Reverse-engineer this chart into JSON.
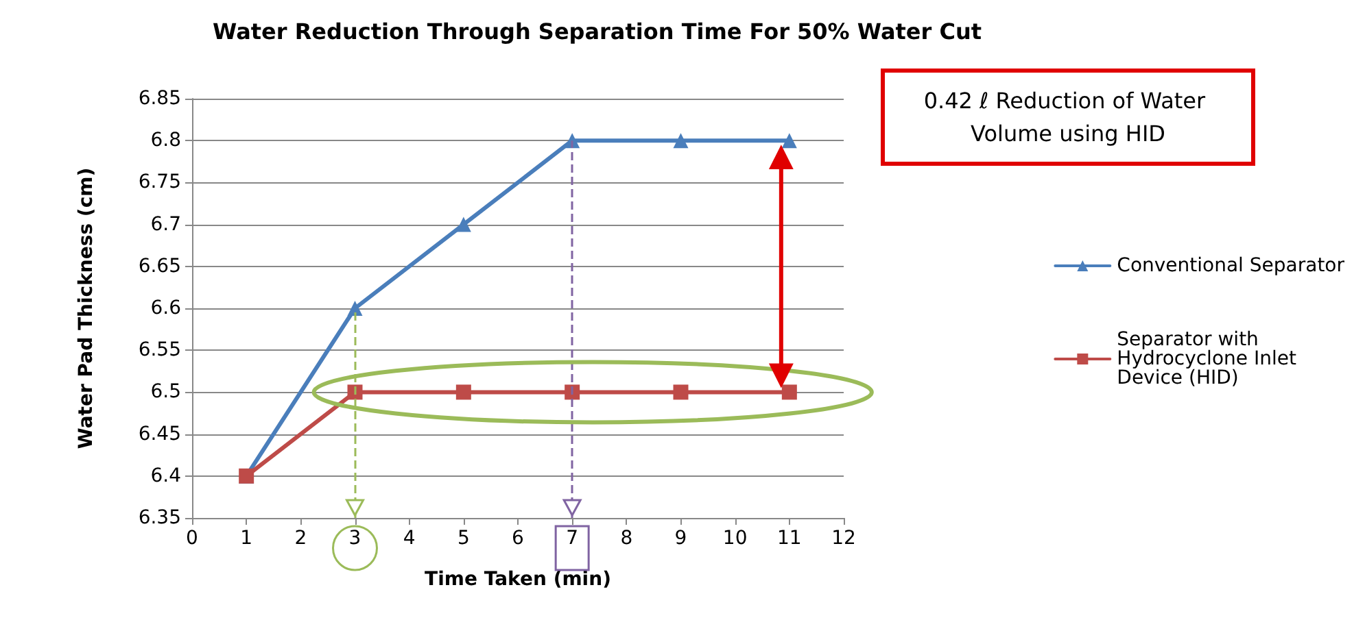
{
  "chart_data": {
    "type": "line",
    "title": "Water Reduction Through Separation Time For 50% Water Cut",
    "xlabel": "Time Taken (min)",
    "ylabel": "Water Pad Thickness (cm)",
    "x": [
      1,
      3,
      5,
      7,
      9,
      11
    ],
    "series": [
      {
        "name": "Conventional Separator",
        "color": "#4a7ebb",
        "marker": "triangle",
        "values": [
          6.4,
          6.6,
          6.7,
          6.8,
          6.8,
          6.8
        ]
      },
      {
        "name": "Separator with Hydrocyclone Inlet Device (HID)",
        "color": "#be4b48",
        "marker": "square",
        "values": [
          6.4,
          6.5,
          6.5,
          6.5,
          6.5,
          6.5
        ]
      }
    ],
    "xlim": [
      0,
      12
    ],
    "xticks": [
      0,
      1,
      2,
      3,
      4,
      5,
      6,
      7,
      8,
      9,
      10,
      11,
      12
    ],
    "ylim": [
      6.35,
      6.85
    ],
    "yticks": [
      6.35,
      6.4,
      6.45,
      6.5,
      6.55,
      6.6,
      6.65,
      6.7,
      6.75,
      6.8,
      6.85
    ],
    "ref_lines": [
      {
        "axis": "x",
        "value": 3,
        "color": "#9bbb59",
        "line_style": "dashed"
      },
      {
        "axis": "x",
        "value": 7,
        "color": "#8064a2",
        "line_style": "dashed"
      }
    ],
    "grid": "y",
    "legend": "right",
    "line_style": "solid",
    "annotations": [
      "0.42 ℓ Reduction of Water Volume using HID"
    ]
  }
}
